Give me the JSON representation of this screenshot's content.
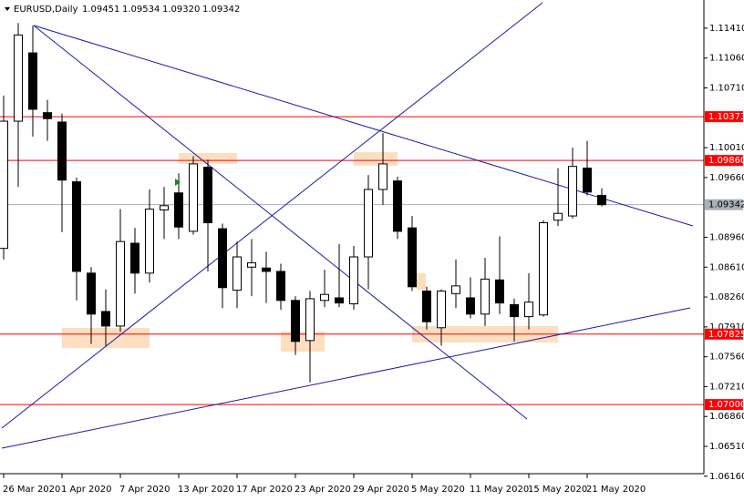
{
  "chart_data": {
    "type": "candlestick",
    "title": "EURUSD,Daily",
    "quote_labels": [
      "1.09451",
      "1.09534",
      "1.09320",
      "1.09342"
    ],
    "categories": [
      "26 Mar 2020",
      null,
      null,
      null,
      "1 Apr 2020",
      null,
      null,
      null,
      "7 Apr 2020",
      null,
      null,
      null,
      "13 Apr 2020",
      null,
      null,
      null,
      "17 Apr 2020",
      null,
      null,
      null,
      "23 Apr 2020",
      null,
      null,
      null,
      "29 Apr 2020",
      null,
      null,
      null,
      "5 May 2020",
      null,
      null,
      null,
      "11 May 2020",
      null,
      null,
      null,
      "15 May 2020",
      null,
      null,
      null,
      "21 May 2020",
      null
    ],
    "open": [
      1.0883,
      1.1032,
      1.1112,
      1.1042,
      1.1031,
      1.0961,
      1.0854,
      1.0809,
      1.0792,
      1.0889,
      1.0854,
      1.0928,
      1.0948,
      1.0903,
      1.0978,
      1.0906,
      1.0834,
      1.0861,
      1.086,
      1.0856,
      1.0822,
      1.0775,
      1.0822,
      1.0825,
      1.0818,
      1.0873,
      1.0952,
      1.0962,
      1.0907,
      1.0833,
      1.079,
      1.083,
      1.0825,
      1.0806,
      1.0846,
      1.0817,
      1.0803,
      1.0805,
      1.0916,
      1.0921,
      1.0977,
      1.09451
    ],
    "high": [
      1.1062,
      1.1147,
      1.1144,
      1.1057,
      1.1041,
      1.0966,
      1.0861,
      1.0835,
      1.0929,
      1.0907,
      1.0952,
      1.0955,
      1.0971,
      1.0991,
      1.0987,
      1.0912,
      1.0891,
      1.0894,
      1.0879,
      1.0865,
      1.0827,
      1.0833,
      1.0858,
      1.0888,
      1.0886,
      1.0969,
      1.1018,
      1.0967,
      1.0921,
      1.0838,
      1.0835,
      1.087,
      1.0849,
      1.0872,
      1.0897,
      1.0824,
      1.0854,
      1.0916,
      1.0977,
      1.1001,
      1.1009,
      1.09534
    ],
    "low": [
      1.087,
      1.0955,
      1.1014,
      1.1009,
      1.0902,
      1.0822,
      1.0771,
      1.0769,
      1.0785,
      1.083,
      1.0843,
      1.0894,
      1.0894,
      1.0899,
      1.0856,
      1.0813,
      1.0813,
      1.0827,
      1.0819,
      1.0811,
      1.0758,
      1.0726,
      1.0814,
      1.0814,
      1.0811,
      1.0835,
      1.0934,
      1.0894,
      1.0833,
      1.0788,
      1.0769,
      1.0813,
      1.0801,
      1.0792,
      1.0806,
      1.0774,
      1.0788,
      1.0803,
      1.0909,
      1.0918,
      1.0945,
      1.0932
    ],
    "close": [
      1.1032,
      1.1133,
      1.1046,
      1.1035,
      1.0963,
      1.0856,
      1.0806,
      1.0792,
      1.0891,
      1.0854,
      1.0929,
      1.0933,
      1.0908,
      1.0982,
      1.0913,
      1.0837,
      1.0873,
      1.0866,
      1.0856,
      1.0822,
      1.0774,
      1.0824,
      1.0829,
      1.0819,
      1.0873,
      1.0952,
      1.0982,
      1.0903,
      1.0838,
      1.0797,
      1.0833,
      1.0839,
      1.0806,
      1.0847,
      1.0819,
      1.0803,
      1.082,
      1.0913,
      1.0924,
      1.0979,
      1.0949,
      1.09342
    ],
    "ylim": [
      1.0619,
      1.1174
    ],
    "yticks": [
      {
        "value": 1.1141,
        "label": "1.11410"
      },
      {
        "value": 1.1106,
        "label": "1.11060"
      },
      {
        "value": 1.1071,
        "label": "1.10710"
      },
      {
        "value": 1.1001,
        "label": "1.10010"
      },
      {
        "value": 1.0966,
        "label": "1.09660"
      },
      {
        "value": 1.0896,
        "label": "1.08960"
      },
      {
        "value": 1.0861,
        "label": "1.08610"
      },
      {
        "value": 1.0826,
        "label": "1.08260"
      },
      {
        "value": 1.0791,
        "label": "1.07910"
      },
      {
        "value": 1.0756,
        "label": "1.07560"
      },
      {
        "value": 1.0721,
        "label": "1.07210"
      },
      {
        "value": 1.0686,
        "label": "1.06860"
      },
      {
        "value": 1.0651,
        "label": "1.06510"
      },
      {
        "value": 1.0616,
        "label": "1.06160"
      }
    ],
    "levels": [
      {
        "value": 1.10373,
        "color": "#ff0000"
      },
      {
        "value": 1.0986,
        "label": "1.09860",
        "color": "#ff0000"
      },
      {
        "value": 1.07825,
        "color": "#ff0000"
      },
      {
        "value": 1.07,
        "label": "1.07000",
        "color": "#ff0000"
      },
      {
        "value": 1.09342,
        "color": "#a9b0b8"
      }
    ]
  }
}
